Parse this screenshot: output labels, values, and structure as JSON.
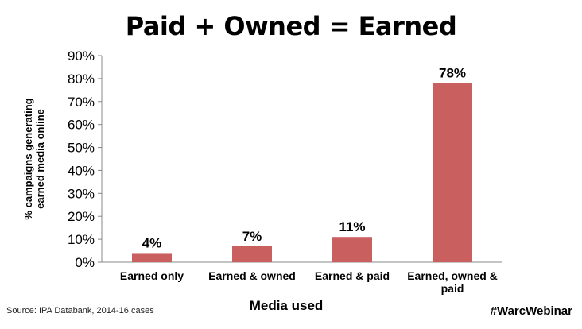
{
  "chart_data": {
    "type": "bar",
    "title": "Paid + Owned = Earned",
    "categories": [
      "Earned only",
      "Earned & owned",
      "Earned & paid",
      "Earned, owned & paid"
    ],
    "values": [
      4,
      7,
      11,
      78
    ],
    "data_labels": [
      "4%",
      "7%",
      "11%",
      "78%"
    ],
    "xlabel": "Media used",
    "ylabel_lines": [
      "% campaigns generating",
      "earned media online"
    ],
    "ylim": [
      0,
      90
    ],
    "yticks": [
      0,
      10,
      20,
      30,
      40,
      50,
      60,
      70,
      80,
      90
    ],
    "ytick_labels": [
      "0%",
      "10%",
      "20%",
      "30%",
      "40%",
      "50%",
      "60%",
      "70%",
      "80%",
      "90%"
    ],
    "bar_color": "#c9605f",
    "grid": false,
    "legend": "none"
  },
  "footer": {
    "source": "Source: IPA Databank, 2014-16 cases",
    "hashtag": "#WarcWebinar"
  }
}
